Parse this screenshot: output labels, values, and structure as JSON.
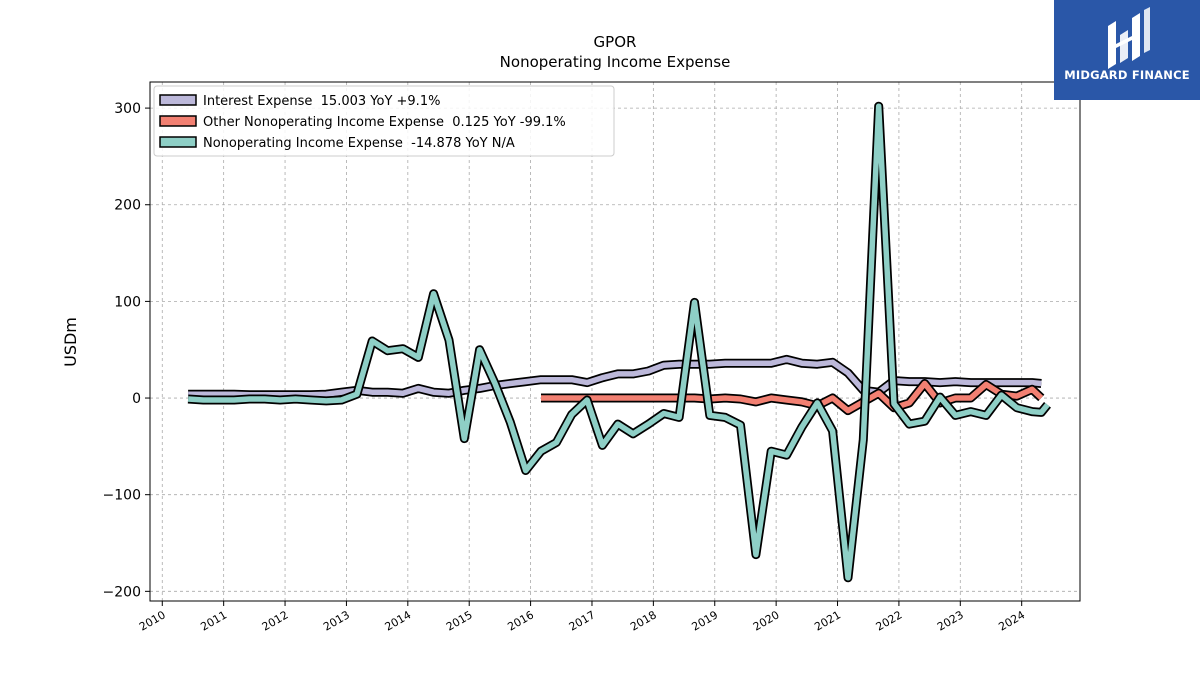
{
  "brand": {
    "name": "MIDGARD FINANCE",
    "background_color": "#2a57a8"
  },
  "chart_data": {
    "type": "line",
    "title": "GPOR",
    "subtitle": "Nonoperating Income Expense",
    "xlabel": "",
    "ylabel": "USDm",
    "xlim": [
      2009.8,
      2024.95
    ],
    "ylim": [
      -210,
      327
    ],
    "x_ticks": [
      2010,
      2011,
      2012,
      2013,
      2014,
      2015,
      2016,
      2017,
      2018,
      2019,
      2020,
      2021,
      2022,
      2023,
      2024
    ],
    "y_ticks": [
      -200,
      -100,
      0,
      100,
      200,
      300
    ],
    "y_tick_labels": [
      "−200",
      "−100",
      "0",
      "100",
      "200",
      "300"
    ],
    "grid": true,
    "legend_position": "top-left",
    "series": [
      {
        "name": "Interest Expense",
        "legend_label": "Interest Expense  15.003 YoY +9.1%",
        "color": "#bcb8da",
        "points": [
          [
            2010.42,
            4
          ],
          [
            2010.67,
            4
          ],
          [
            2010.92,
            4
          ],
          [
            2011.17,
            4
          ],
          [
            2011.42,
            3.5
          ],
          [
            2011.67,
            3.5
          ],
          [
            2011.92,
            3.5
          ],
          [
            2012.17,
            3.5
          ],
          [
            2012.42,
            3.5
          ],
          [
            2012.67,
            4
          ],
          [
            2012.92,
            6
          ],
          [
            2013.17,
            8
          ],
          [
            2013.42,
            6
          ],
          [
            2013.67,
            6
          ],
          [
            2013.92,
            5
          ],
          [
            2014.17,
            10
          ],
          [
            2014.42,
            6
          ],
          [
            2014.67,
            5
          ],
          [
            2014.92,
            8
          ],
          [
            2015.17,
            10
          ],
          [
            2015.42,
            13
          ],
          [
            2015.67,
            15
          ],
          [
            2015.92,
            17
          ],
          [
            2016.17,
            19
          ],
          [
            2016.42,
            19
          ],
          [
            2016.67,
            19
          ],
          [
            2016.92,
            16
          ],
          [
            2017.17,
            21
          ],
          [
            2017.42,
            25
          ],
          [
            2017.67,
            25
          ],
          [
            2017.92,
            28
          ],
          [
            2018.17,
            34
          ],
          [
            2018.42,
            35
          ],
          [
            2018.67,
            35
          ],
          [
            2018.92,
            35
          ],
          [
            2019.17,
            36
          ],
          [
            2019.42,
            36
          ],
          [
            2019.67,
            36
          ],
          [
            2019.92,
            36
          ],
          [
            2020.17,
            40
          ],
          [
            2020.42,
            36
          ],
          [
            2020.67,
            35
          ],
          [
            2020.92,
            37
          ],
          [
            2021.17,
            26
          ],
          [
            2021.42,
            8
          ],
          [
            2021.67,
            6
          ],
          [
            2021.92,
            18
          ],
          [
            2022.17,
            17
          ],
          [
            2022.42,
            17
          ],
          [
            2022.67,
            16
          ],
          [
            2022.92,
            17
          ],
          [
            2023.17,
            16
          ],
          [
            2023.42,
            16
          ],
          [
            2023.67,
            16
          ],
          [
            2023.92,
            16
          ],
          [
            2024.17,
            16
          ],
          [
            2024.32,
            15.003
          ]
        ]
      },
      {
        "name": "Other Nonoperating Income Expense",
        "legend_label": "Other Nonoperating Income Expense  0.125 YoY -99.1%",
        "color": "#f28072",
        "points": [
          [
            2016.17,
            0
          ],
          [
            2016.42,
            0
          ],
          [
            2016.67,
            0
          ],
          [
            2016.92,
            0
          ],
          [
            2017.17,
            0
          ],
          [
            2017.42,
            0
          ],
          [
            2017.67,
            0
          ],
          [
            2017.92,
            0
          ],
          [
            2018.17,
            0
          ],
          [
            2018.42,
            0
          ],
          [
            2018.67,
            0
          ],
          [
            2018.92,
            -1
          ],
          [
            2019.17,
            0
          ],
          [
            2019.42,
            -1
          ],
          [
            2019.67,
            -4
          ],
          [
            2019.92,
            0
          ],
          [
            2020.17,
            -2
          ],
          [
            2020.42,
            -4
          ],
          [
            2020.67,
            -8
          ],
          [
            2020.92,
            0
          ],
          [
            2021.17,
            -13
          ],
          [
            2021.42,
            -4
          ],
          [
            2021.67,
            5
          ],
          [
            2021.92,
            -10
          ],
          [
            2022.17,
            -5
          ],
          [
            2022.42,
            15
          ],
          [
            2022.67,
            -5
          ],
          [
            2022.92,
            0
          ],
          [
            2023.17,
            0
          ],
          [
            2023.42,
            14
          ],
          [
            2023.67,
            4
          ],
          [
            2023.92,
            2
          ],
          [
            2024.17,
            9
          ],
          [
            2024.32,
            0.125
          ]
        ]
      },
      {
        "name": "Nonoperating Income Expense",
        "legend_label": "Nonoperating Income Expense  -14.878 YoY N/A",
        "color": "#8ecfc6",
        "points": [
          [
            2010.42,
            -1
          ],
          [
            2010.67,
            -2
          ],
          [
            2010.92,
            -2
          ],
          [
            2011.17,
            -2
          ],
          [
            2011.42,
            -1
          ],
          [
            2011.67,
            -1
          ],
          [
            2011.92,
            -2
          ],
          [
            2012.17,
            -1
          ],
          [
            2012.42,
            -2
          ],
          [
            2012.67,
            -3
          ],
          [
            2012.92,
            -2
          ],
          [
            2013.17,
            4
          ],
          [
            2013.42,
            59
          ],
          [
            2013.67,
            49
          ],
          [
            2013.92,
            51
          ],
          [
            2014.17,
            42
          ],
          [
            2014.42,
            108
          ],
          [
            2014.67,
            60
          ],
          [
            2014.92,
            -42
          ],
          [
            2015.17,
            50
          ],
          [
            2015.42,
            15
          ],
          [
            2015.67,
            -25
          ],
          [
            2015.92,
            -75
          ],
          [
            2016.17,
            -55
          ],
          [
            2016.42,
            -46
          ],
          [
            2016.67,
            -17
          ],
          [
            2016.92,
            -2
          ],
          [
            2017.17,
            -49
          ],
          [
            2017.42,
            -27
          ],
          [
            2017.67,
            -37
          ],
          [
            2017.92,
            -27
          ],
          [
            2018.17,
            -16
          ],
          [
            2018.42,
            -20
          ],
          [
            2018.67,
            99
          ],
          [
            2018.92,
            -18
          ],
          [
            2019.17,
            -20
          ],
          [
            2019.42,
            -28
          ],
          [
            2019.67,
            -162
          ],
          [
            2019.92,
            -55
          ],
          [
            2020.17,
            -59
          ],
          [
            2020.42,
            -30
          ],
          [
            2020.67,
            -5
          ],
          [
            2020.92,
            -34
          ],
          [
            2021.17,
            -186
          ],
          [
            2021.42,
            -43
          ],
          [
            2021.67,
            302
          ],
          [
            2021.92,
            -6
          ],
          [
            2022.17,
            -27
          ],
          [
            2022.42,
            -24
          ],
          [
            2022.67,
            1
          ],
          [
            2022.92,
            -18
          ],
          [
            2023.17,
            -14
          ],
          [
            2023.42,
            -18
          ],
          [
            2023.67,
            3
          ],
          [
            2023.92,
            -10
          ],
          [
            2024.17,
            -14
          ],
          [
            2024.42,
            -7
          ],
          [
            2024.32,
            -14.878
          ]
        ]
      }
    ]
  }
}
